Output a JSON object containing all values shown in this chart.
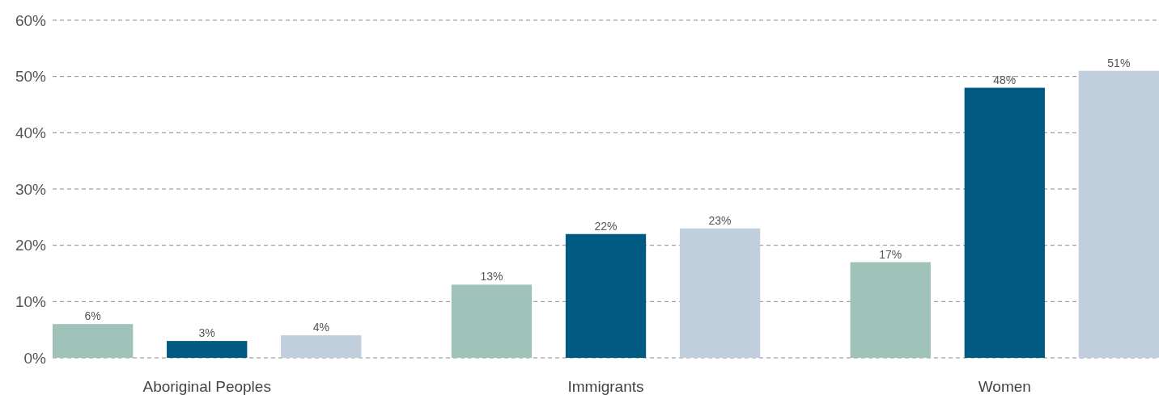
{
  "chart_data": {
    "type": "bar",
    "categories": [
      "Aboriginal Peoples",
      "Immigrants",
      "Women"
    ],
    "series": [
      {
        "color": "#9fc2b9",
        "values": [
          6,
          13,
          17
        ],
        "value_labels": [
          "6%",
          "13%",
          "17%"
        ]
      },
      {
        "color": "#005a82",
        "values": [
          3,
          22,
          48
        ],
        "value_labels": [
          "3%",
          "22%",
          "48%"
        ]
      },
      {
        "color": "#c1cedb",
        "values": [
          4,
          23,
          51
        ],
        "value_labels": [
          "4%",
          "23%",
          "51%"
        ]
      }
    ],
    "ylim": [
      0,
      60
    ],
    "yticks": [
      {
        "value": 0,
        "label": "0%"
      },
      {
        "value": 10,
        "label": "10%"
      },
      {
        "value": 20,
        "label": "20%"
      },
      {
        "value": 30,
        "label": "30%"
      },
      {
        "value": 40,
        "label": "40%"
      },
      {
        "value": 50,
        "label": "50%"
      },
      {
        "value": 60,
        "label": "60%"
      }
    ],
    "grid": "y"
  }
}
